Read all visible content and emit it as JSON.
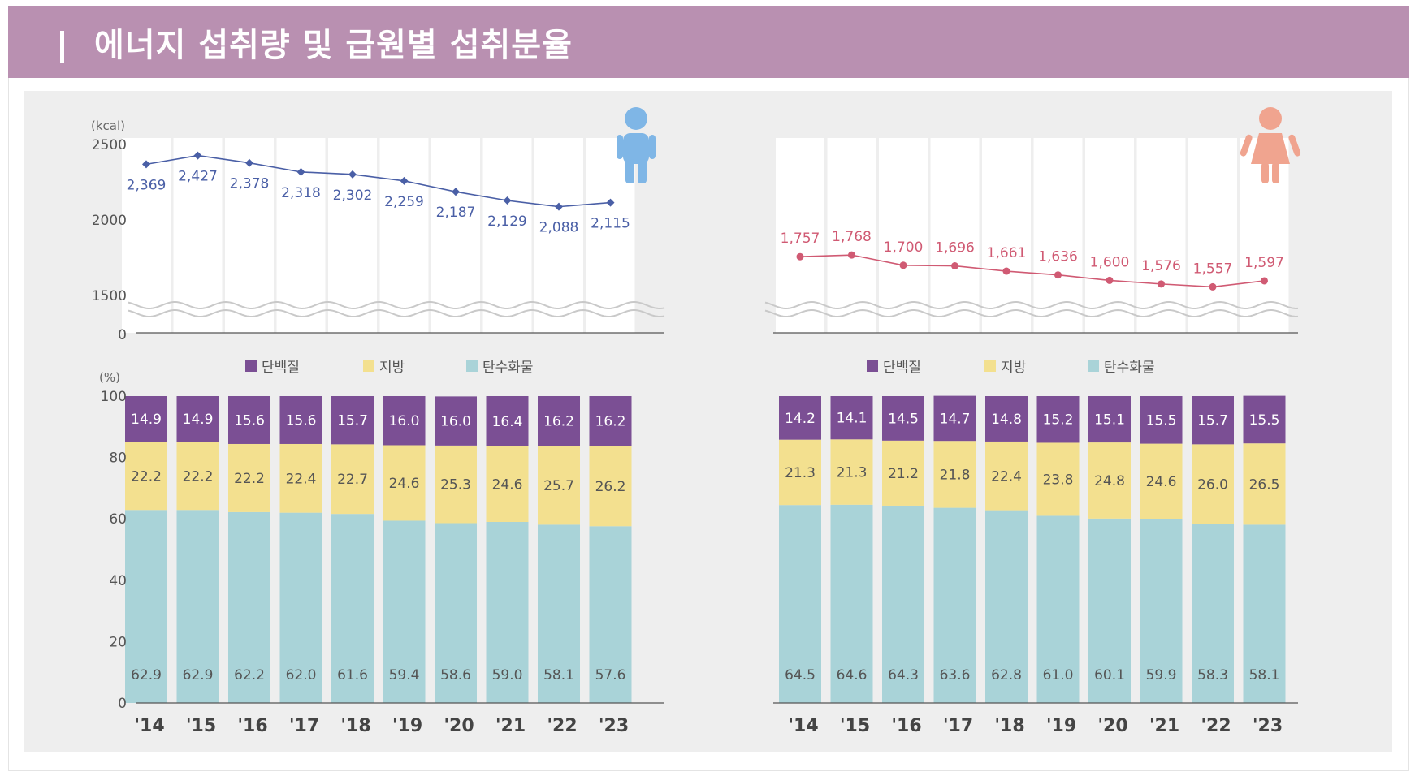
{
  "title": "에너지 섭취량 및 급원별 섭취분율",
  "colors": {
    "header": "#b990b1",
    "panel": "#eeeeee",
    "male_line": "#4a5fa6",
    "female_line": "#d05a73",
    "protein": "#7b4f94",
    "fat": "#f3e08f",
    "carb": "#a9d3d8",
    "male_icon": "#7fb6e6",
    "female_icon": "#f0a48f"
  },
  "icons": {
    "male": "male-person-icon",
    "female": "female-person-icon"
  },
  "chart_data": [
    {
      "type": "line",
      "panel": "male",
      "ylabel": "(kcal)",
      "yticks": [
        "2500",
        "2000",
        "1500",
        "0"
      ],
      "ylim": [
        1500,
        2500
      ],
      "axis_break": true,
      "categories": [
        "'14",
        "'15",
        "'16",
        "'17",
        "'18",
        "'19",
        "'20",
        "'21",
        "'22",
        "'23"
      ],
      "values": [
        2369,
        2427,
        2378,
        2318,
        2302,
        2259,
        2187,
        2129,
        2088,
        2115
      ],
      "labels": [
        "2,369",
        "2,427",
        "2,378",
        "2,318",
        "2,302",
        "2,259",
        "2,187",
        "2,129",
        "2,088",
        "2,115"
      ]
    },
    {
      "type": "line",
      "panel": "female",
      "ylim": [
        1500,
        2500
      ],
      "axis_break": true,
      "categories": [
        "'14",
        "'15",
        "'16",
        "'17",
        "'18",
        "'19",
        "'20",
        "'21",
        "'22",
        "'23"
      ],
      "values": [
        1757,
        1768,
        1700,
        1696,
        1661,
        1636,
        1600,
        1576,
        1557,
        1597
      ],
      "labels": [
        "1,757",
        "1,768",
        "1,700",
        "1,696",
        "1,661",
        "1,636",
        "1,600",
        "1,576",
        "1,557",
        "1,597"
      ]
    },
    {
      "type": "bar",
      "stacked": true,
      "panel": "male",
      "ylabel": "(%)",
      "yticks": [
        "100",
        "80",
        "60",
        "40",
        "20",
        "0"
      ],
      "ylim": [
        0,
        100
      ],
      "legend": [
        "단백질",
        "지방",
        "탄수화물"
      ],
      "categories": [
        "'14",
        "'15",
        "'16",
        "'17",
        "'18",
        "'19",
        "'20",
        "'21",
        "'22",
        "'23"
      ],
      "series": [
        {
          "name": "탄수화물",
          "values": [
            62.9,
            62.9,
            62.2,
            62.0,
            61.6,
            59.4,
            58.6,
            59.0,
            58.1,
            57.6
          ],
          "labels": [
            "62.9",
            "62.9",
            "62.2",
            "62.0",
            "61.6",
            "59.4",
            "58.6",
            "59.0",
            "58.1",
            "57.6"
          ]
        },
        {
          "name": "지방",
          "values": [
            22.2,
            22.2,
            22.2,
            22.4,
            22.7,
            24.6,
            25.3,
            24.6,
            25.7,
            26.2
          ],
          "labels": [
            "22.2",
            "22.2",
            "22.2",
            "22.4",
            "22.7",
            "24.6",
            "25.3",
            "24.6",
            "25.7",
            "26.2"
          ]
        },
        {
          "name": "단백질",
          "values": [
            14.9,
            14.9,
            15.6,
            15.6,
            15.7,
            16.0,
            16.0,
            16.4,
            16.2,
            16.2
          ],
          "labels": [
            "14.9",
            "14.9",
            "15.6",
            "15.6",
            "15.7",
            "16.0",
            "16.0",
            "16.4",
            "16.2",
            "16.2"
          ]
        }
      ]
    },
    {
      "type": "bar",
      "stacked": true,
      "panel": "female",
      "ylim": [
        0,
        100
      ],
      "legend": [
        "단백질",
        "지방",
        "탄수화물"
      ],
      "categories": [
        "'14",
        "'15",
        "'16",
        "'17",
        "'18",
        "'19",
        "'20",
        "'21",
        "'22",
        "'23"
      ],
      "series": [
        {
          "name": "탄수화물",
          "values": [
            64.5,
            64.6,
            64.3,
            63.6,
            62.8,
            61.0,
            60.1,
            59.9,
            58.3,
            58.1
          ],
          "labels": [
            "64.5",
            "64.6",
            "64.3",
            "63.6",
            "62.8",
            "61.0",
            "60.1",
            "59.9",
            "58.3",
            "58.1"
          ]
        },
        {
          "name": "지방",
          "values": [
            21.3,
            21.3,
            21.2,
            21.8,
            22.4,
            23.8,
            24.8,
            24.6,
            26.0,
            26.5
          ],
          "labels": [
            "21.3",
            "21.3",
            "21.2",
            "21.8",
            "22.4",
            "23.8",
            "24.8",
            "24.6",
            "26.0",
            "26.5"
          ]
        },
        {
          "name": "단백질",
          "values": [
            14.2,
            14.1,
            14.5,
            14.7,
            14.8,
            15.2,
            15.1,
            15.5,
            15.7,
            15.5
          ],
          "labels": [
            "14.2",
            "14.1",
            "14.5",
            "14.7",
            "14.8",
            "15.2",
            "15.1",
            "15.5",
            "15.7",
            "15.5"
          ]
        }
      ]
    }
  ]
}
